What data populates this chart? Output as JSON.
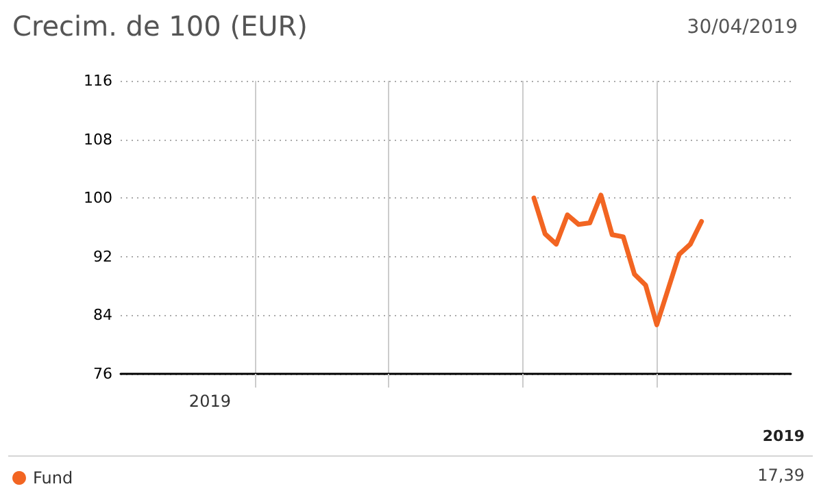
{
  "chart_data": {
    "type": "line",
    "title": "Crecim. de 100 (EUR)",
    "subtitle": "30/04/2019",
    "categories": [
      null,
      null,
      null,
      null,
      null,
      null,
      null,
      null,
      "2019",
      null,
      null,
      null,
      null,
      null,
      null,
      null,
      null,
      null,
      null,
      null,
      null,
      null,
      null,
      null,
      null,
      null,
      null,
      null,
      null,
      null,
      null,
      null,
      null,
      null,
      null,
      null,
      null,
      null,
      null,
      null,
      null,
      null,
      null,
      null,
      null,
      null,
      null,
      null,
      null,
      null,
      null,
      null,
      null,
      null,
      null,
      null,
      null,
      null,
      null,
      null,
      null
    ],
    "series": [
      {
        "name": "Fund",
        "color": "#f26522",
        "values": [
          null,
          null,
          null,
          null,
          null,
          null,
          null,
          null,
          null,
          null,
          null,
          null,
          null,
          null,
          null,
          null,
          null,
          null,
          null,
          null,
          null,
          null,
          null,
          null,
          null,
          null,
          null,
          null,
          null,
          null,
          null,
          null,
          null,
          null,
          null,
          null,
          null,
          100.0,
          95.1,
          93.7,
          97.7,
          96.4,
          96.6,
          100.4,
          95.0,
          94.7,
          89.6,
          88.1,
          82.7,
          87.5,
          92.3,
          93.7,
          96.8,
          null,
          null,
          null,
          null,
          null,
          null,
          null,
          null
        ]
      }
    ],
    "ylim": [
      76,
      116
    ],
    "yticks": [
      76,
      84,
      92,
      100,
      108,
      116
    ],
    "grid": true,
    "legend": "bottom left",
    "marker": "none",
    "line_style": "solid",
    "annotations": [
      "2019",
      "17,39"
    ]
  }
}
